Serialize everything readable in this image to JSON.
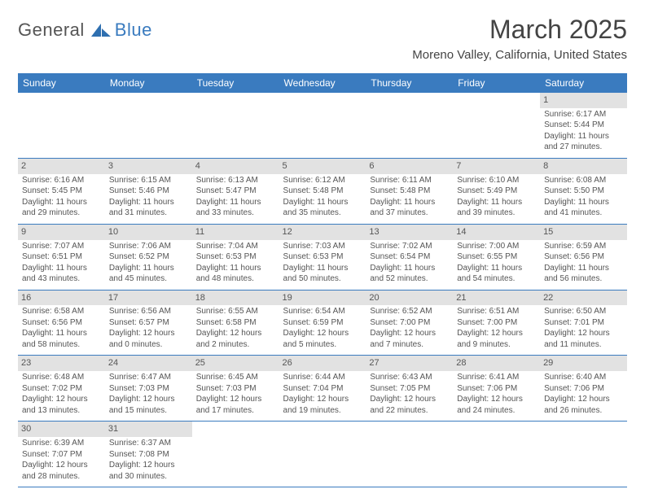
{
  "brand": {
    "part1": "General",
    "part2": "Blue"
  },
  "title": "March 2025",
  "location": "Moreno Valley, California, United States",
  "style": {
    "header_bg": "#3a7bbf",
    "header_text": "#ffffff",
    "row_border": "#3a7bbf",
    "daynum_bg": "#e2e2e2",
    "title_color": "#444444",
    "body_text": "#555555",
    "brand_accent": "#3a7bbf",
    "month_fontsize": 32,
    "location_fontsize": 15,
    "dayheader_fontsize": 12,
    "cell_fontsize": 10
  },
  "dayHeaders": [
    "Sunday",
    "Monday",
    "Tuesday",
    "Wednesday",
    "Thursday",
    "Friday",
    "Saturday"
  ],
  "weeks": [
    [
      null,
      null,
      null,
      null,
      null,
      null,
      {
        "d": "1",
        "sr": "6:17 AM",
        "ss": "5:44 PM",
        "dl": "11 hours and 27 minutes."
      }
    ],
    [
      {
        "d": "2",
        "sr": "6:16 AM",
        "ss": "5:45 PM",
        "dl": "11 hours and 29 minutes."
      },
      {
        "d": "3",
        "sr": "6:15 AM",
        "ss": "5:46 PM",
        "dl": "11 hours and 31 minutes."
      },
      {
        "d": "4",
        "sr": "6:13 AM",
        "ss": "5:47 PM",
        "dl": "11 hours and 33 minutes."
      },
      {
        "d": "5",
        "sr": "6:12 AM",
        "ss": "5:48 PM",
        "dl": "11 hours and 35 minutes."
      },
      {
        "d": "6",
        "sr": "6:11 AM",
        "ss": "5:48 PM",
        "dl": "11 hours and 37 minutes."
      },
      {
        "d": "7",
        "sr": "6:10 AM",
        "ss": "5:49 PM",
        "dl": "11 hours and 39 minutes."
      },
      {
        "d": "8",
        "sr": "6:08 AM",
        "ss": "5:50 PM",
        "dl": "11 hours and 41 minutes."
      }
    ],
    [
      {
        "d": "9",
        "sr": "7:07 AM",
        "ss": "6:51 PM",
        "dl": "11 hours and 43 minutes."
      },
      {
        "d": "10",
        "sr": "7:06 AM",
        "ss": "6:52 PM",
        "dl": "11 hours and 45 minutes."
      },
      {
        "d": "11",
        "sr": "7:04 AM",
        "ss": "6:53 PM",
        "dl": "11 hours and 48 minutes."
      },
      {
        "d": "12",
        "sr": "7:03 AM",
        "ss": "6:53 PM",
        "dl": "11 hours and 50 minutes."
      },
      {
        "d": "13",
        "sr": "7:02 AM",
        "ss": "6:54 PM",
        "dl": "11 hours and 52 minutes."
      },
      {
        "d": "14",
        "sr": "7:00 AM",
        "ss": "6:55 PM",
        "dl": "11 hours and 54 minutes."
      },
      {
        "d": "15",
        "sr": "6:59 AM",
        "ss": "6:56 PM",
        "dl": "11 hours and 56 minutes."
      }
    ],
    [
      {
        "d": "16",
        "sr": "6:58 AM",
        "ss": "6:56 PM",
        "dl": "11 hours and 58 minutes."
      },
      {
        "d": "17",
        "sr": "6:56 AM",
        "ss": "6:57 PM",
        "dl": "12 hours and 0 minutes."
      },
      {
        "d": "18",
        "sr": "6:55 AM",
        "ss": "6:58 PM",
        "dl": "12 hours and 2 minutes."
      },
      {
        "d": "19",
        "sr": "6:54 AM",
        "ss": "6:59 PM",
        "dl": "12 hours and 5 minutes."
      },
      {
        "d": "20",
        "sr": "6:52 AM",
        "ss": "7:00 PM",
        "dl": "12 hours and 7 minutes."
      },
      {
        "d": "21",
        "sr": "6:51 AM",
        "ss": "7:00 PM",
        "dl": "12 hours and 9 minutes."
      },
      {
        "d": "22",
        "sr": "6:50 AM",
        "ss": "7:01 PM",
        "dl": "12 hours and 11 minutes."
      }
    ],
    [
      {
        "d": "23",
        "sr": "6:48 AM",
        "ss": "7:02 PM",
        "dl": "12 hours and 13 minutes."
      },
      {
        "d": "24",
        "sr": "6:47 AM",
        "ss": "7:03 PM",
        "dl": "12 hours and 15 minutes."
      },
      {
        "d": "25",
        "sr": "6:45 AM",
        "ss": "7:03 PM",
        "dl": "12 hours and 17 minutes."
      },
      {
        "d": "26",
        "sr": "6:44 AM",
        "ss": "7:04 PM",
        "dl": "12 hours and 19 minutes."
      },
      {
        "d": "27",
        "sr": "6:43 AM",
        "ss": "7:05 PM",
        "dl": "12 hours and 22 minutes."
      },
      {
        "d": "28",
        "sr": "6:41 AM",
        "ss": "7:06 PM",
        "dl": "12 hours and 24 minutes."
      },
      {
        "d": "29",
        "sr": "6:40 AM",
        "ss": "7:06 PM",
        "dl": "12 hours and 26 minutes."
      }
    ],
    [
      {
        "d": "30",
        "sr": "6:39 AM",
        "ss": "7:07 PM",
        "dl": "12 hours and 28 minutes."
      },
      {
        "d": "31",
        "sr": "6:37 AM",
        "ss": "7:08 PM",
        "dl": "12 hours and 30 minutes."
      },
      null,
      null,
      null,
      null,
      null
    ]
  ],
  "labels": {
    "sunrise": "Sunrise:",
    "sunset": "Sunset:",
    "daylight": "Daylight:"
  }
}
